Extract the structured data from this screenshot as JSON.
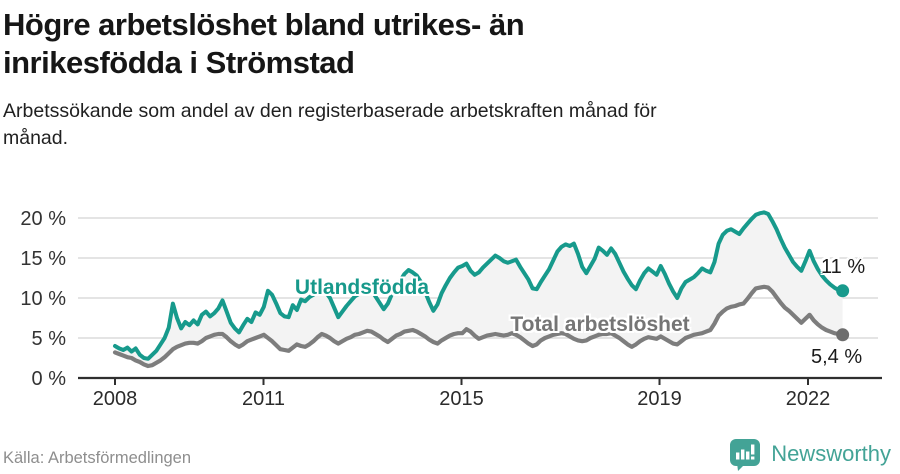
{
  "header": {
    "title": "Högre arbetslöshet bland utrikes- än inrikesfödda i Strömstad",
    "subtitle": "Arbetssökande som andel av den registerbaserade arbetskraften månad för månad."
  },
  "footer": {
    "source": "Källa: Arbetsförmedlingen",
    "brand": "Newsworthy",
    "brand_color": "#43a396"
  },
  "chart_data": {
    "type": "line",
    "title": "Högre arbetslöshet bland utrikes- än inrikesfödda i Strömstad",
    "subtitle": "Arbetssökande som andel av den registerbaserade arbetskraften månad för månad.",
    "xlabel": "",
    "ylabel": "",
    "x_unit": "year (monthly points)",
    "x_start": 2008.0,
    "x_end": 2022.7,
    "ylim": [
      0,
      20
    ],
    "grid": "horizontal",
    "legend": "inline series labels",
    "band_fill_between_series": "#f3f3f3",
    "axis_color": "#2f2f2f",
    "grid_color": "#e4e4e4",
    "y_ticks": [
      {
        "v": 20,
        "label": "20 %"
      },
      {
        "v": 15,
        "label": "15 %"
      },
      {
        "v": 10,
        "label": "10 %"
      },
      {
        "v": 5,
        "label": "5 %"
      },
      {
        "v": 0,
        "label": "0 %"
      }
    ],
    "x_ticks": [
      {
        "v": 2008,
        "label": "2008"
      },
      {
        "v": 2011,
        "label": "2011"
      },
      {
        "v": 2015,
        "label": "2015"
      },
      {
        "v": 2019,
        "label": "2019"
      },
      {
        "v": 2022,
        "label": "2022"
      }
    ],
    "series": [
      {
        "name": "Utlandsfödda",
        "color": "#179a8c",
        "end_label": "11 %",
        "end_value": 11,
        "values": [
          4.0,
          3.7,
          3.5,
          3.8,
          3.3,
          3.7,
          2.9,
          2.5,
          2.4,
          2.9,
          3.4,
          4.2,
          5.0,
          6.3,
          9.3,
          7.5,
          6.2,
          7.0,
          6.6,
          7.2,
          6.7,
          7.9,
          8.3,
          7.7,
          8.1,
          8.7,
          9.7,
          8.3,
          6.9,
          6.2,
          5.7,
          6.6,
          7.4,
          7.0,
          8.2,
          7.9,
          8.9,
          10.9,
          10.4,
          9.3,
          8.1,
          7.7,
          7.6,
          9.1,
          8.5,
          9.8,
          9.6,
          10.1,
          10.4,
          11.0,
          11.1,
          10.7,
          10.0,
          8.8,
          7.6,
          8.3,
          9.0,
          9.6,
          10.2,
          10.5,
          10.8,
          11.1,
          11.0,
          10.2,
          9.4,
          8.6,
          9.3,
          10.5,
          11.4,
          12.2,
          13.0,
          13.5,
          13.2,
          12.8,
          12.0,
          10.8,
          9.5,
          8.4,
          9.2,
          10.6,
          11.6,
          12.5,
          13.2,
          13.8,
          14.0,
          14.3,
          13.4,
          12.9,
          13.2,
          13.8,
          14.3,
          14.8,
          15.3,
          15.0,
          14.6,
          14.4,
          14.6,
          14.8,
          13.9,
          13.1,
          12.3,
          11.2,
          11.1,
          12.0,
          12.8,
          13.6,
          14.7,
          15.8,
          16.4,
          16.7,
          16.5,
          16.8,
          15.5,
          13.9,
          13.1,
          14.0,
          14.9,
          16.3,
          15.9,
          15.4,
          16.2,
          15.5,
          14.4,
          13.3,
          12.4,
          11.6,
          11.1,
          12.2,
          13.1,
          13.7,
          13.3,
          12.9,
          14.0,
          13.0,
          11.8,
          10.8,
          10.0,
          11.2,
          12.0,
          12.3,
          12.6,
          13.1,
          13.7,
          13.4,
          13.2,
          14.5,
          16.8,
          17.9,
          18.4,
          18.6,
          18.3,
          18.0,
          18.7,
          19.3,
          19.9,
          20.4,
          20.6,
          20.7,
          20.5,
          19.6,
          18.6,
          17.4,
          16.3,
          15.4,
          14.5,
          13.9,
          13.4,
          14.6,
          15.9,
          14.6,
          13.6,
          12.8,
          12.2,
          11.7,
          11.3,
          11.0,
          10.9
        ]
      },
      {
        "name": "Total arbetslöshet",
        "color": "#7d7d7d",
        "end_label": "5,4 %",
        "end_value": 5.4,
        "values": [
          3.2,
          3.0,
          2.8,
          2.6,
          2.5,
          2.2,
          2.0,
          1.7,
          1.5,
          1.6,
          1.9,
          2.2,
          2.6,
          3.1,
          3.6,
          3.9,
          4.1,
          4.3,
          4.4,
          4.4,
          4.3,
          4.6,
          5.0,
          5.2,
          5.4,
          5.5,
          5.5,
          5.1,
          4.6,
          4.2,
          3.9,
          4.2,
          4.6,
          4.8,
          5.0,
          5.2,
          5.4,
          5.0,
          4.6,
          4.1,
          3.6,
          3.5,
          3.4,
          3.8,
          4.2,
          4.0,
          3.9,
          4.2,
          4.6,
          5.1,
          5.5,
          5.3,
          5.0,
          4.6,
          4.3,
          4.6,
          4.9,
          5.1,
          5.4,
          5.5,
          5.7,
          5.9,
          5.8,
          5.5,
          5.2,
          4.8,
          4.5,
          4.9,
          5.3,
          5.5,
          5.8,
          5.9,
          6.0,
          5.8,
          5.5,
          5.2,
          4.8,
          4.5,
          4.3,
          4.7,
          5.0,
          5.3,
          5.5,
          5.6,
          5.6,
          6.1,
          5.8,
          5.3,
          4.9,
          5.1,
          5.3,
          5.4,
          5.5,
          5.4,
          5.3,
          5.4,
          5.6,
          5.4,
          5.1,
          4.7,
          4.3,
          4.0,
          4.2,
          4.7,
          5.0,
          5.2,
          5.4,
          5.5,
          5.6,
          5.5,
          5.2,
          4.9,
          4.7,
          4.6,
          4.7,
          5.0,
          5.2,
          5.4,
          5.5,
          5.5,
          5.6,
          5.3,
          5.0,
          4.6,
          4.2,
          3.9,
          4.2,
          4.6,
          4.9,
          5.1,
          5.0,
          4.9,
          5.2,
          4.9,
          4.6,
          4.3,
          4.2,
          4.6,
          5.0,
          5.2,
          5.4,
          5.5,
          5.6,
          5.8,
          6.0,
          6.8,
          7.8,
          8.3,
          8.7,
          8.9,
          9.0,
          9.2,
          9.3,
          9.9,
          10.6,
          11.2,
          11.3,
          11.4,
          11.3,
          10.8,
          10.1,
          9.4,
          8.8,
          8.4,
          7.9,
          7.4,
          6.9,
          7.4,
          7.9,
          7.2,
          6.7,
          6.3,
          6.0,
          5.8,
          5.6,
          5.5,
          5.4
        ]
      }
    ]
  }
}
